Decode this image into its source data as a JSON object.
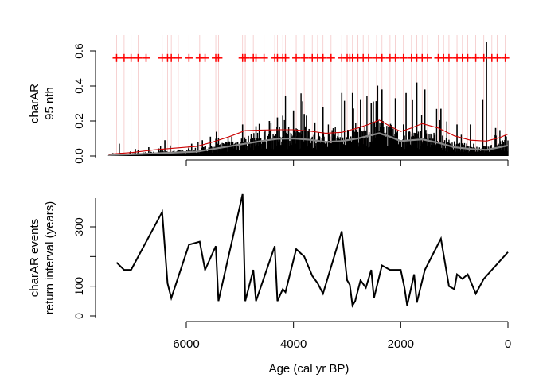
{
  "chart_data": [
    {
      "type": "bar",
      "panel": "top",
      "ylabel_lines": [
        "charAR",
        "95 nth"
      ],
      "ylim": [
        0,
        0.65
      ],
      "yticks": [
        "0.0",
        "0.2",
        "0.4",
        "0.6"
      ],
      "xlim_note": "age axis reversed (older at left)",
      "xticks": [
        6000,
        4000,
        2000,
        0
      ],
      "xticks_labeled": false,
      "series": [
        {
          "kind": "bars",
          "color": "#000000"
        },
        {
          "kind": "threshold_line",
          "color": "#cc0000"
        },
        {
          "kind": "background_line",
          "color": "#888888"
        }
      ],
      "bar_spikes": [
        {
          "x": 7250,
          "y": 0.07
        },
        {
          "x": 6950,
          "y": 0.04
        },
        {
          "x": 6700,
          "y": 0.05
        },
        {
          "x": 6400,
          "y": 0.09
        },
        {
          "x": 6300,
          "y": 0.06
        },
        {
          "x": 5900,
          "y": 0.07
        },
        {
          "x": 5700,
          "y": 0.09
        },
        {
          "x": 5550,
          "y": 0.11
        },
        {
          "x": 5400,
          "y": 0.1
        },
        {
          "x": 5150,
          "y": 0.11
        },
        {
          "x": 4950,
          "y": 0.18
        },
        {
          "x": 4700,
          "y": 0.17
        },
        {
          "x": 4450,
          "y": 0.2
        },
        {
          "x": 4300,
          "y": 0.22
        },
        {
          "x": 4200,
          "y": 0.23
        },
        {
          "x": 4000,
          "y": 0.26
        },
        {
          "x": 3800,
          "y": 0.24
        },
        {
          "x": 3450,
          "y": 0.28
        },
        {
          "x": 3100,
          "y": 0.36
        },
        {
          "x": 2900,
          "y": 0.36
        },
        {
          "x": 2750,
          "y": 0.32
        },
        {
          "x": 2550,
          "y": 0.3
        },
        {
          "x": 2350,
          "y": 0.38
        },
        {
          "x": 2100,
          "y": 0.33
        },
        {
          "x": 1900,
          "y": 0.36
        },
        {
          "x": 1700,
          "y": 0.42
        },
        {
          "x": 1550,
          "y": 0.38
        },
        {
          "x": 1250,
          "y": 0.27
        },
        {
          "x": 950,
          "y": 0.18
        },
        {
          "x": 700,
          "y": 0.18
        },
        {
          "x": 470,
          "y": 0.32
        },
        {
          "x": 400,
          "y": 0.65
        },
        {
          "x": 230,
          "y": 0.16
        },
        {
          "x": 50,
          "y": 0.12
        }
      ],
      "threshold_points": [
        {
          "x": 7450,
          "y": 0.01
        },
        {
          "x": 7000,
          "y": 0.02
        },
        {
          "x": 6600,
          "y": 0.035
        },
        {
          "x": 6200,
          "y": 0.045
        },
        {
          "x": 5800,
          "y": 0.055
        },
        {
          "x": 5500,
          "y": 0.08
        },
        {
          "x": 5200,
          "y": 0.11
        },
        {
          "x": 4900,
          "y": 0.145
        },
        {
          "x": 4600,
          "y": 0.148
        },
        {
          "x": 4300,
          "y": 0.15
        },
        {
          "x": 4000,
          "y": 0.15
        },
        {
          "x": 3700,
          "y": 0.142
        },
        {
          "x": 3400,
          "y": 0.13
        },
        {
          "x": 3100,
          "y": 0.135
        },
        {
          "x": 2800,
          "y": 0.16
        },
        {
          "x": 2600,
          "y": 0.18
        },
        {
          "x": 2400,
          "y": 0.205
        },
        {
          "x": 2200,
          "y": 0.17
        },
        {
          "x": 2000,
          "y": 0.14
        },
        {
          "x": 1800,
          "y": 0.16
        },
        {
          "x": 1600,
          "y": 0.185
        },
        {
          "x": 1300,
          "y": 0.16
        },
        {
          "x": 1000,
          "y": 0.115
        },
        {
          "x": 700,
          "y": 0.09
        },
        {
          "x": 400,
          "y": 0.085
        },
        {
          "x": 150,
          "y": 0.105
        },
        {
          "x": 0,
          "y": 0.125
        }
      ],
      "background_points": [
        {
          "x": 7450,
          "y": 0.005
        },
        {
          "x": 7000,
          "y": 0.01
        },
        {
          "x": 6600,
          "y": 0.015
        },
        {
          "x": 6200,
          "y": 0.02
        },
        {
          "x": 5800,
          "y": 0.025
        },
        {
          "x": 5500,
          "y": 0.04
        },
        {
          "x": 5200,
          "y": 0.055
        },
        {
          "x": 4900,
          "y": 0.07
        },
        {
          "x": 4600,
          "y": 0.085
        },
        {
          "x": 4300,
          "y": 0.098
        },
        {
          "x": 4000,
          "y": 0.1
        },
        {
          "x": 3700,
          "y": 0.093
        },
        {
          "x": 3400,
          "y": 0.08
        },
        {
          "x": 3100,
          "y": 0.085
        },
        {
          "x": 2800,
          "y": 0.1
        },
        {
          "x": 2600,
          "y": 0.115
        },
        {
          "x": 2400,
          "y": 0.13
        },
        {
          "x": 2200,
          "y": 0.11
        },
        {
          "x": 2000,
          "y": 0.085
        },
        {
          "x": 1800,
          "y": 0.09
        },
        {
          "x": 1600,
          "y": 0.095
        },
        {
          "x": 1300,
          "y": 0.075
        },
        {
          "x": 1000,
          "y": 0.05
        },
        {
          "x": 700,
          "y": 0.04
        },
        {
          "x": 400,
          "y": 0.035
        },
        {
          "x": 150,
          "y": 0.05
        },
        {
          "x": 0,
          "y": 0.06
        }
      ],
      "peak_marker_y": 0.56,
      "peak_marker_symbol": "+",
      "peak_marker_color": "#ff0000",
      "peak_ages": [
        7300,
        7160,
        7030,
        6900,
        6750,
        6450,
        6350,
        6280,
        6150,
        5950,
        5750,
        5650,
        5450,
        5400,
        4950,
        4900,
        4750,
        4700,
        4550,
        4350,
        4300,
        4200,
        4150,
        3950,
        3800,
        3650,
        3550,
        3450,
        3300,
        3100,
        3000,
        2950,
        2900,
        2800,
        2700,
        2600,
        2450,
        2350,
        2200,
        2100,
        1950,
        1800,
        1700,
        1600,
        1500,
        1300,
        1200,
        1100,
        950,
        850,
        750,
        600,
        450,
        300,
        200,
        50
      ]
    },
    {
      "type": "line",
      "panel": "bottom",
      "ylabel_lines": [
        "charAR events",
        "return interval (years)"
      ],
      "xlabel": "Age (cal yr BP)",
      "ylim": [
        0,
        410
      ],
      "yticks": [
        0,
        100,
        300
      ],
      "xticks": [
        6000,
        4000,
        2000,
        0
      ],
      "color": "#000000",
      "points": [
        {
          "x": 7300,
          "y": 180
        },
        {
          "x": 7160,
          "y": 155
        },
        {
          "x": 7030,
          "y": 155
        },
        {
          "x": 6450,
          "y": 350
        },
        {
          "x": 6350,
          "y": 110
        },
        {
          "x": 6280,
          "y": 60
        },
        {
          "x": 5950,
          "y": 240
        },
        {
          "x": 5750,
          "y": 250
        },
        {
          "x": 5650,
          "y": 155
        },
        {
          "x": 5450,
          "y": 235
        },
        {
          "x": 5400,
          "y": 50
        },
        {
          "x": 4950,
          "y": 410
        },
        {
          "x": 4900,
          "y": 50
        },
        {
          "x": 4750,
          "y": 155
        },
        {
          "x": 4700,
          "y": 50
        },
        {
          "x": 4350,
          "y": 235
        },
        {
          "x": 4300,
          "y": 50
        },
        {
          "x": 4200,
          "y": 90
        },
        {
          "x": 4150,
          "y": 80
        },
        {
          "x": 3950,
          "y": 225
        },
        {
          "x": 3800,
          "y": 200
        },
        {
          "x": 3650,
          "y": 135
        },
        {
          "x": 3550,
          "y": 110
        },
        {
          "x": 3450,
          "y": 75
        },
        {
          "x": 3100,
          "y": 285
        },
        {
          "x": 3000,
          "y": 120
        },
        {
          "x": 2950,
          "y": 105
        },
        {
          "x": 2900,
          "y": 35
        },
        {
          "x": 2850,
          "y": 50
        },
        {
          "x": 2750,
          "y": 120
        },
        {
          "x": 2650,
          "y": 95
        },
        {
          "x": 2550,
          "y": 155
        },
        {
          "x": 2500,
          "y": 60
        },
        {
          "x": 2350,
          "y": 170
        },
        {
          "x": 2200,
          "y": 155
        },
        {
          "x": 2000,
          "y": 155
        },
        {
          "x": 1930,
          "y": 95
        },
        {
          "x": 1880,
          "y": 35
        },
        {
          "x": 1750,
          "y": 140
        },
        {
          "x": 1700,
          "y": 45
        },
        {
          "x": 1550,
          "y": 155
        },
        {
          "x": 1250,
          "y": 260
        },
        {
          "x": 1100,
          "y": 100
        },
        {
          "x": 1000,
          "y": 90
        },
        {
          "x": 950,
          "y": 140
        },
        {
          "x": 850,
          "y": 125
        },
        {
          "x": 750,
          "y": 140
        },
        {
          "x": 600,
          "y": 75
        },
        {
          "x": 450,
          "y": 125
        },
        {
          "x": 300,
          "y": 155
        },
        {
          "x": 0,
          "y": 215
        }
      ]
    }
  ]
}
